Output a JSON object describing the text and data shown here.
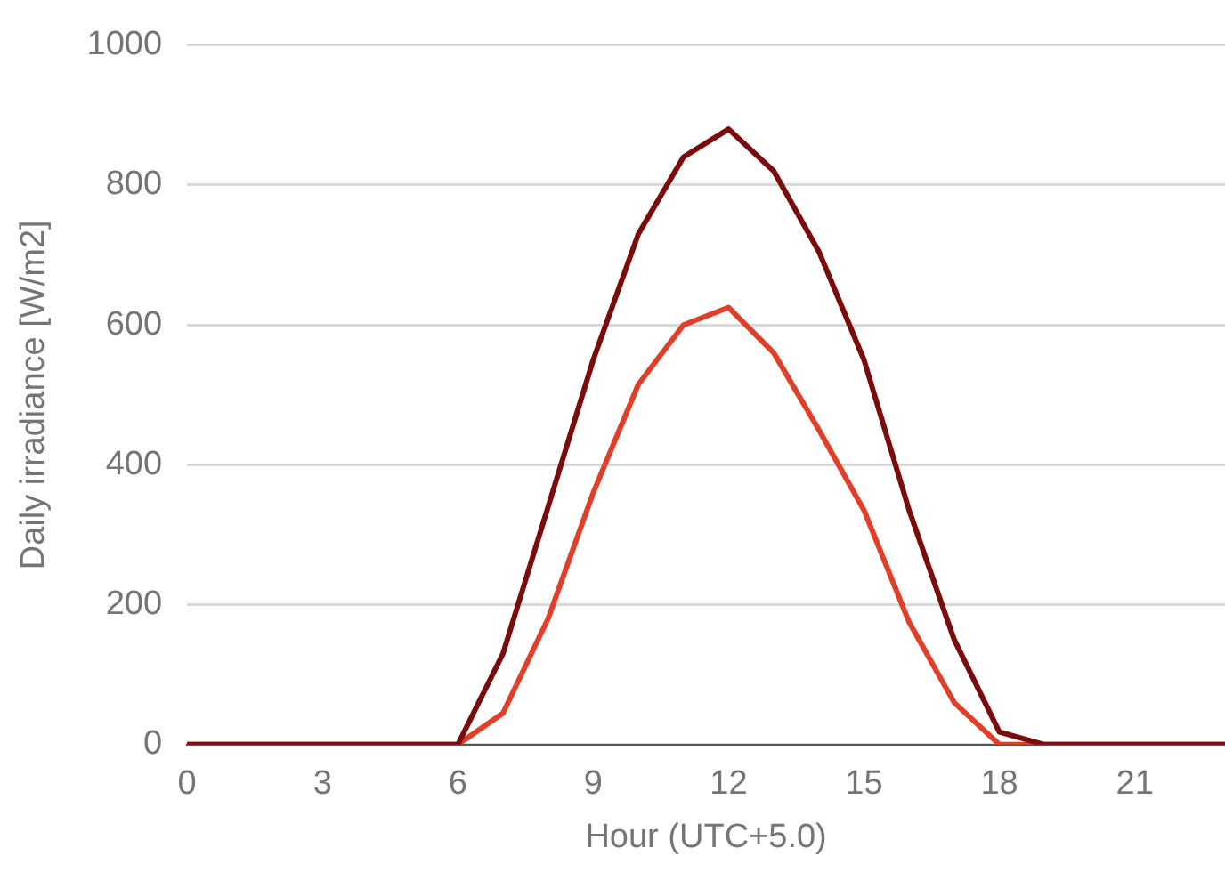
{
  "chart_data": {
    "type": "line",
    "xlabel": "Hour (UTC+5.0)",
    "ylabel": "Daily irradiance [W/m2]",
    "x": [
      0,
      1,
      2,
      3,
      4,
      5,
      6,
      7,
      8,
      9,
      10,
      11,
      12,
      13,
      14,
      15,
      16,
      17,
      18,
      19,
      20,
      21,
      22,
      23
    ],
    "series": [
      {
        "color": "#7b0c0c",
        "values": [
          0,
          0,
          0,
          0,
          0,
          0,
          0,
          130,
          340,
          550,
          730,
          840,
          880,
          820,
          705,
          550,
          335,
          150,
          18,
          0,
          0,
          0,
          0,
          0
        ]
      },
      {
        "color": "#e0402a",
        "values": [
          0,
          0,
          0,
          0,
          0,
          0,
          0,
          45,
          180,
          360,
          515,
          600,
          625,
          560,
          450,
          335,
          175,
          60,
          0,
          0,
          0,
          0,
          0,
          0
        ]
      }
    ],
    "xlim": [
      0,
      23
    ],
    "xticks": [
      0,
      3,
      6,
      9,
      12,
      15,
      18,
      21
    ],
    "ylim": [
      0,
      1000
    ],
    "yticks": [
      0,
      200,
      400,
      600,
      800,
      1000
    ],
    "grid": "y",
    "legend": false,
    "marker": "none",
    "line_style": "solid"
  }
}
